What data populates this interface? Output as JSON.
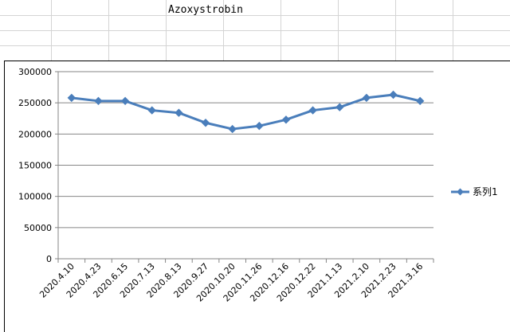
{
  "sheet": {
    "title_cell": "Azoxystrobin"
  },
  "chart_data": {
    "type": "line",
    "title": "",
    "xlabel": "",
    "ylabel": "",
    "categories": [
      "2020.4.10",
      "2020.4.23",
      "2020.6.15",
      "2020.7.13",
      "2020.8.13",
      "2020.9.27",
      "2020.10.20",
      "2020.11.26",
      "2020.12.16",
      "2020.12.22",
      "2021.1.13",
      "2021.2.10",
      "2021.2.23",
      "2021.3.16"
    ],
    "series": [
      {
        "name": "系列1",
        "values": [
          258000,
          253000,
          253000,
          238000,
          234000,
          218000,
          208000,
          213000,
          223000,
          238000,
          243000,
          258000,
          263000,
          253000
        ],
        "color": "#4a7ebb"
      }
    ],
    "ylim": [
      0,
      300000
    ],
    "yticks": [
      "0",
      "50000",
      "100000",
      "150000",
      "200000",
      "250000",
      "300000"
    ],
    "grid": true,
    "legend": "right"
  }
}
